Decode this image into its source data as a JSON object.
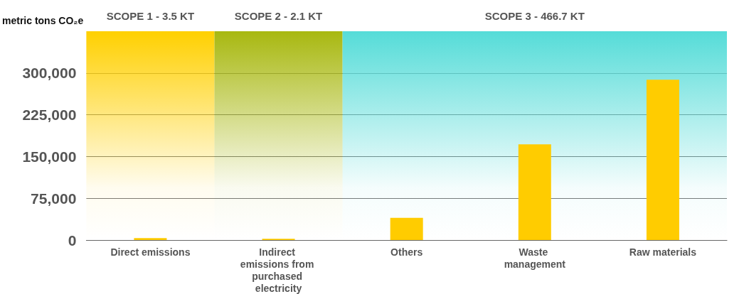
{
  "chart_data": {
    "type": "bar",
    "ylabel": "metric tons CO₂e",
    "categories": [
      "Direct emissions",
      "Indirect emissions from purchased electricity",
      "Others",
      "Waste management",
      "Raw materials"
    ],
    "values": [
      3500,
      2100,
      40000,
      172000,
      288000
    ],
    "color": "#ffcc00",
    "ylim": [
      0,
      375000
    ],
    "yticks": [
      {
        "value": 0,
        "label": "0"
      },
      {
        "value": 75000,
        "label": "75,000"
      },
      {
        "value": 150000,
        "label": "150,000"
      },
      {
        "value": 225000,
        "label": "225,000"
      },
      {
        "value": 300000,
        "label": "300,000"
      }
    ],
    "grid": "y",
    "bands": [
      {
        "axis": "x",
        "from": "Direct emissions",
        "to": "Direct emissions",
        "label": "SCOPE 1 - 3.5 KT",
        "color": "#ffd000"
      },
      {
        "axis": "x",
        "from": "Indirect emissions from purchased electricity",
        "to": "Indirect emissions from purchased electricity",
        "label": "SCOPE 2 - 2.1 KT",
        "color": "#a8b810"
      },
      {
        "axis": "x",
        "from": "Others",
        "to": "Raw materials",
        "label": "SCOPE 3 - 466.7 KT",
        "color": "#55dcd8"
      }
    ]
  }
}
